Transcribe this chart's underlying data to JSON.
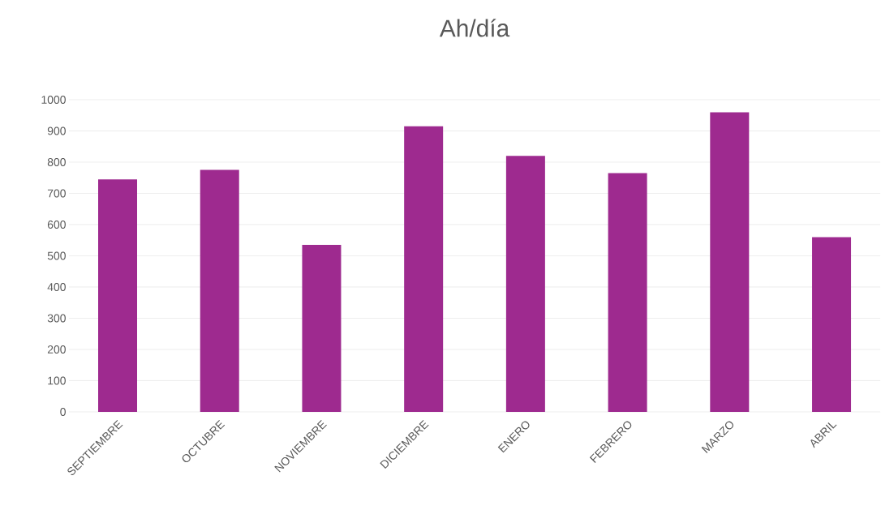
{
  "chart_data": {
    "type": "bar",
    "title": "Ah/día",
    "categories": [
      "SEPTIEMBRE",
      "OCTUBRE",
      "NOVIEMBRE",
      "DICIEMBRE",
      "ENERO",
      "FEBRERO",
      "MARZO",
      "ABRIL"
    ],
    "values": [
      745,
      775,
      535,
      915,
      820,
      765,
      960,
      560
    ],
    "color": "#9e2a8f",
    "ylim": [
      0,
      1000
    ],
    "yticks": [
      0,
      100,
      200,
      300,
      400,
      500,
      600,
      700,
      800,
      900,
      1000
    ],
    "grid": "y"
  }
}
